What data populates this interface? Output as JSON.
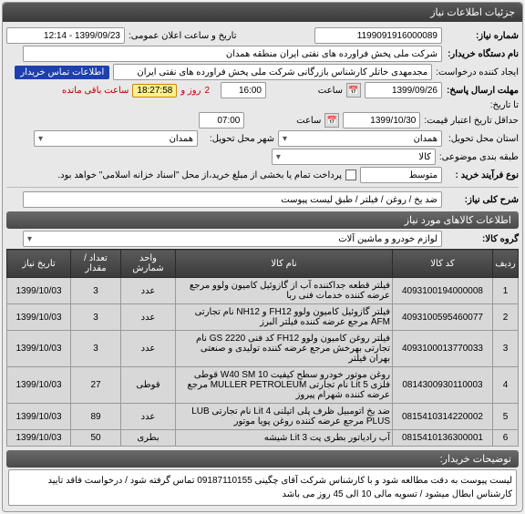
{
  "header": {
    "title": "جزئیات اطلاعات نیاز"
  },
  "form": {
    "need_no_label": "شماره نیاز:",
    "need_no": "1199091916000089",
    "public_announce_label": "تاریخ و ساعت اعلان عمومی:",
    "public_announce": "1399/09/23 - 12:14",
    "buyer_label": "نام دستگاه خریدار:",
    "buyer": "شرکت ملی پخش فراورده های نفتی ایران منطقه همدان",
    "creator_label": "ایجاد کننده درخواست:",
    "creator": "مجدمهدی خاتلر کارشناس بازرگانی شرکت ملی پخش فراورده های نفتی ایران",
    "contact_badge": "اطلاعات تماس خریدار",
    "deadline_label": "مهلت ارسال پاسخ:",
    "deadline_date": "1399/09/26",
    "time_label": "ساعت",
    "deadline_time_h": "16:00",
    "days_and_label": "و",
    "days_remain": "2",
    "days_label": "روز و",
    "countdown": "18:27:58",
    "remain_label": "ساعت باقی مانده",
    "until_label": "تا تاریخ:",
    "credit_label": "حداقل تاریخ اعتبار قیمت:",
    "credit_date": "1399/10/30",
    "credit_time": "07:00",
    "delivery_state_label": "استان محل تحویل:",
    "delivery_state": "همدان",
    "delivery_city_label": "شهر محل تحویل:",
    "delivery_city": "همدان",
    "budget_label": "طبقه بندی موضوعی:",
    "budget": "کالا",
    "process_label": "نوع فرآیند خرید :",
    "process": "متوسط",
    "partial_pay": "پرداخت تمام یا بخشی از مبلغ خرید،از محل \"اسناد خزانه اسلامی\" خواهد بود.",
    "desc_label": "شرح کلی نیاز:",
    "desc": "ضد یخ / روغن / فیلتر / طبق لیست پیوست"
  },
  "items_header": "اطلاعات کالاهای مورد نیاز",
  "group_label": "گروه کالا:",
  "group_value": "لوازم خودرو و ماشین آلات",
  "table": {
    "columns": [
      "ردیف",
      "کد کالا",
      "نام کالا",
      "واحد شمارش",
      "تعداد / مقدار",
      "تاریخ نیاز"
    ],
    "rows": [
      [
        "1",
        "4093100194000008",
        "فیلتر قطعه جداکننده آب از گازوئیل کامیون ولوو مرجع عرضه کننده خدمات فنی ربا",
        "عدد",
        "3",
        "1399/10/03"
      ],
      [
        "2",
        "4093100595460077",
        "فیلتر گازوئیل کامیون ولوو FH12 و NH12 نام تجارتی AFM مرجع عرضه کننده فیلتر البرز",
        "عدد",
        "3",
        "1399/10/03"
      ],
      [
        "3",
        "4093100013770033",
        "فیلتر روغن کامیون ولوو FH12 کد فنی GS 2220 نام تجارتی بهرخش مرجع عرضه کننده تولیدی و صنعتی بهران فیلتر",
        "عدد",
        "3",
        "1399/10/03"
      ],
      [
        "4",
        "0814300930110003",
        "روغن موتور خودرو سطح کیفیت 10 W40 SM قوطی فلزی 5 Lit نام تجارتی MULLER PETROLEUM مرجع عرضه کننده شهرام پیروز",
        "قوطی",
        "27",
        "1399/10/03"
      ],
      [
        "5",
        "0815410314220002",
        "ضد یخ اتومبیل ظرف پلی اتیلنی Lit 4 نام تجارتی LUB PLUS مرجع عرضه کننده روغن پویا موتور",
        "عدد",
        "89",
        "1399/10/03"
      ],
      [
        "6",
        "0815410136300001",
        "آب رادیاتور بطری پت Lit 3 شیشه",
        "بطری",
        "50",
        "1399/10/03"
      ]
    ]
  },
  "buyer_notes_header": "توضیحات خریدار:",
  "buyer_notes": "لیست پیوست به دقت مطالعه شود و با کارشناس شرکت آقای چگینی 09187110155 تماس گرفته شود / درخواست فاقد تایید کارشناس ابطال میشود / تسویه مالی 10 الی 45 روز می باشد"
}
